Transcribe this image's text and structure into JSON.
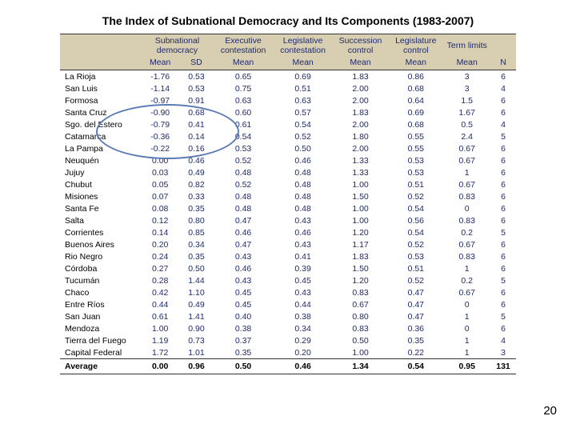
{
  "title": "The Index of Subnational Democracy and Its Components (1983-2007)",
  "page_number": "20",
  "headers_top": [
    "",
    "Subnational democracy",
    "Executive contestation",
    "Legislative contestation",
    "Succession control",
    "Legislature control",
    "Term limits",
    ""
  ],
  "headers_bot": [
    "",
    "Mean",
    "SD",
    "Mean",
    "Mean",
    "Mean",
    "Mean",
    "Mean",
    "N"
  ],
  "rows": [
    {
      "p": "La Rioja",
      "m": "-1.76",
      "sd": "0.53",
      "ec": "0.65",
      "lc": "0.69",
      "sc": "1.83",
      "lg": "0.86",
      "tl": "3",
      "n": "6"
    },
    {
      "p": "San Luis",
      "m": "-1.14",
      "sd": "0.53",
      "ec": "0.75",
      "lc": "0.51",
      "sc": "2.00",
      "lg": "0.68",
      "tl": "3",
      "n": "4"
    },
    {
      "p": "Formosa",
      "m": "-0.97",
      "sd": "0.91",
      "ec": "0.63",
      "lc": "0.63",
      "sc": "2.00",
      "lg": "0.64",
      "tl": "1.5",
      "n": "6"
    },
    {
      "p": "Santa Cruz",
      "m": "-0.90",
      "sd": "0.68",
      "ec": "0.60",
      "lc": "0.57",
      "sc": "1.83",
      "lg": "0.69",
      "tl": "1.67",
      "n": "6"
    },
    {
      "p": "Sgo. del Estero",
      "m": "-0.79",
      "sd": "0.41",
      "ec": "0.61",
      "lc": "0.54",
      "sc": "2.00",
      "lg": "0.68",
      "tl": "0.5",
      "n": "4"
    },
    {
      "p": "Catamarca",
      "m": "-0.36",
      "sd": "0.14",
      "ec": "0.54",
      "lc": "0.52",
      "sc": "1.80",
      "lg": "0.55",
      "tl": "2.4",
      "n": "5"
    },
    {
      "p": "La Pampa",
      "m": "-0.22",
      "sd": "0.16",
      "ec": "0.53",
      "lc": "0.50",
      "sc": "2.00",
      "lg": "0.55",
      "tl": "0.67",
      "n": "6"
    },
    {
      "p": "Neuquén",
      "m": "0.00",
      "sd": "0.46",
      "ec": "0.52",
      "lc": "0.46",
      "sc": "1.33",
      "lg": "0.53",
      "tl": "0.67",
      "n": "6"
    },
    {
      "p": "Jujuy",
      "m": "0.03",
      "sd": "0.49",
      "ec": "0.48",
      "lc": "0.48",
      "sc": "1.33",
      "lg": "0.53",
      "tl": "1",
      "n": "6"
    },
    {
      "p": "Chubut",
      "m": "0.05",
      "sd": "0.82",
      "ec": "0.52",
      "lc": "0.48",
      "sc": "1.00",
      "lg": "0.51",
      "tl": "0.67",
      "n": "6"
    },
    {
      "p": "Misiones",
      "m": "0.07",
      "sd": "0.33",
      "ec": "0.48",
      "lc": "0.48",
      "sc": "1.50",
      "lg": "0.52",
      "tl": "0.83",
      "n": "6"
    },
    {
      "p": "Santa Fe",
      "m": "0.08",
      "sd": "0.35",
      "ec": "0.48",
      "lc": "0.48",
      "sc": "1.00",
      "lg": "0.54",
      "tl": "0",
      "n": "6"
    },
    {
      "p": "Salta",
      "m": "0.12",
      "sd": "0.80",
      "ec": "0.47",
      "lc": "0.43",
      "sc": "1.00",
      "lg": "0.56",
      "tl": "0.83",
      "n": "6"
    },
    {
      "p": "Corrientes",
      "m": "0.14",
      "sd": "0.85",
      "ec": "0.46",
      "lc": "0.46",
      "sc": "1.20",
      "lg": "0.54",
      "tl": "0.2",
      "n": "5"
    },
    {
      "p": "Buenos Aires",
      "m": "0.20",
      "sd": "0.34",
      "ec": "0.47",
      "lc": "0.43",
      "sc": "1.17",
      "lg": "0.52",
      "tl": "0.67",
      "n": "6"
    },
    {
      "p": "Rio Negro",
      "m": "0.24",
      "sd": "0.35",
      "ec": "0.43",
      "lc": "0.41",
      "sc": "1.83",
      "lg": "0.53",
      "tl": "0.83",
      "n": "6"
    },
    {
      "p": "Córdoba",
      "m": "0.27",
      "sd": "0.50",
      "ec": "0.46",
      "lc": "0.39",
      "sc": "1.50",
      "lg": "0.51",
      "tl": "1",
      "n": "6"
    },
    {
      "p": "Tucumán",
      "m": "0.28",
      "sd": "1.44",
      "ec": "0.43",
      "lc": "0.45",
      "sc": "1.20",
      "lg": "0.52",
      "tl": "0.2",
      "n": "5"
    },
    {
      "p": "Chaco",
      "m": "0.42",
      "sd": "1.10",
      "ec": "0.45",
      "lc": "0.43",
      "sc": "0.83",
      "lg": "0.47",
      "tl": "0.67",
      "n": "6"
    },
    {
      "p": "Entre Ríos",
      "m": "0.44",
      "sd": "0.49",
      "ec": "0.45",
      "lc": "0.44",
      "sc": "0.67",
      "lg": "0.47",
      "tl": "0",
      "n": "6"
    },
    {
      "p": "San Juan",
      "m": "0.61",
      "sd": "1.41",
      "ec": "0.40",
      "lc": "0.38",
      "sc": "0.80",
      "lg": "0.47",
      "tl": "1",
      "n": "5"
    },
    {
      "p": "Mendoza",
      "m": "1.00",
      "sd": "0.90",
      "ec": "0.38",
      "lc": "0.34",
      "sc": "0.83",
      "lg": "0.36",
      "tl": "0",
      "n": "6"
    },
    {
      "p": "Tierra del Fuego",
      "m": "1.19",
      "sd": "0.73",
      "ec": "0.37",
      "lc": "0.29",
      "sc": "0.50",
      "lg": "0.35",
      "tl": "1",
      "n": "4"
    },
    {
      "p": "Capital Federal",
      "m": "1.72",
      "sd": "1.01",
      "ec": "0.35",
      "lc": "0.20",
      "sc": "1.00",
      "lg": "0.22",
      "tl": "1",
      "n": "3"
    }
  ],
  "average": {
    "p": "Average",
    "m": "0.00",
    "sd": "0.96",
    "ec": "0.50",
    "lc": "0.46",
    "sc": "1.34",
    "lg": "0.54",
    "tl": "0.95",
    "n": "131"
  },
  "col_widths": [
    "95",
    "45",
    "40",
    "70",
    "70",
    "65",
    "65",
    "55",
    "30"
  ],
  "colors": {
    "header_bg": "#d8cfb2",
    "header_text": "#1f2a6b",
    "value_text": "#1f2a6b",
    "ellipse": "#5b7bb5"
  }
}
